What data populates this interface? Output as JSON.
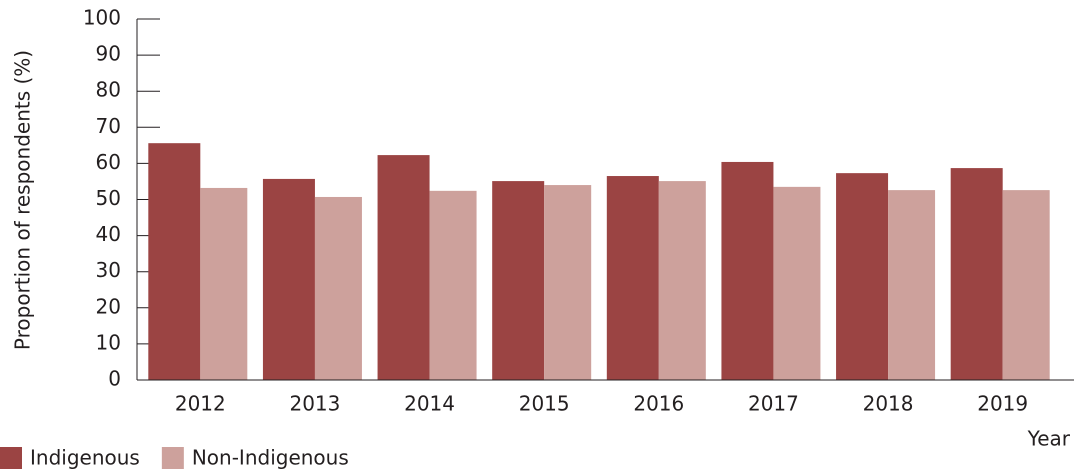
{
  "chart_data": {
    "type": "bar",
    "y_label": "Proportion of respondents (%)",
    "x_label": "Year",
    "categories": [
      "2012",
      "2013",
      "2014",
      "2015",
      "2016",
      "2017",
      "2018",
      "2019"
    ],
    "series": [
      {
        "name": "Indigenous",
        "color": "#9b4443",
        "values": [
          65.6,
          55.7,
          62.3,
          55.1,
          56.5,
          60.4,
          57.3,
          58.7
        ]
      },
      {
        "name": "Non-Indigenous",
        "color": "#cda19c",
        "values": [
          53.2,
          50.7,
          52.4,
          54,
          55.1,
          53.5,
          52.6,
          52.6
        ]
      }
    ],
    "ylim": [
      0,
      100
    ],
    "yticks": [
      0,
      10,
      20,
      30,
      40,
      50,
      60,
      70,
      80,
      90,
      100
    ],
    "legend": "bottom-left"
  }
}
